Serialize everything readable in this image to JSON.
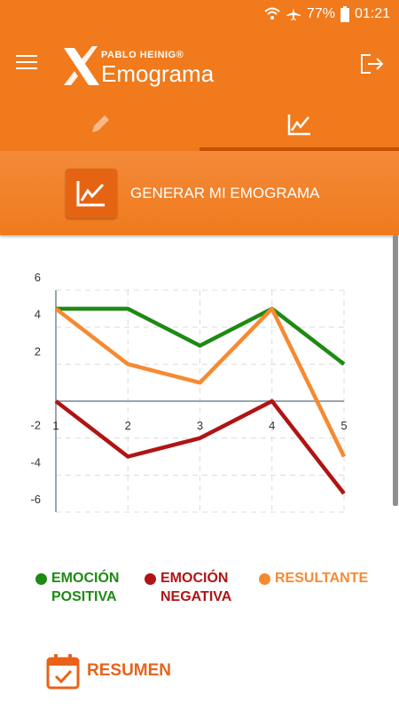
{
  "status": {
    "battery": "77%",
    "time": "01:21"
  },
  "brand": {
    "small": "PABLO HEINIG®",
    "main": "Emograma"
  },
  "tabs": [
    {
      "icon": "pencil-icon",
      "active": false
    },
    {
      "icon": "chart-icon",
      "active": true
    }
  ],
  "action": {
    "label": "GENERAR MI EMOGRAMA",
    "icon": "chart-icon"
  },
  "colors": {
    "primary": "#f07a1c",
    "positive": "#1e8a13",
    "negative": "#b01415",
    "resultant": "#f68a32"
  },
  "chart_data": {
    "type": "line",
    "x": [
      1,
      2,
      3,
      4,
      5
    ],
    "series": [
      {
        "name": "EMOCIÓN POSITIVA",
        "values": [
          5,
          5,
          3,
          5,
          2
        ]
      },
      {
        "name": "EMOCIÓN NEGATIVA",
        "values": [
          0,
          -3,
          -2,
          0,
          -5
        ]
      },
      {
        "name": "RESULTANTE",
        "values": [
          5,
          2,
          1,
          5,
          -3
        ]
      }
    ],
    "xticks": [
      "1",
      "2",
      "3",
      "4",
      "5"
    ],
    "yticks": [
      "6",
      "4",
      "2",
      "-2",
      "-4",
      "-6"
    ],
    "xlim": [
      1,
      5
    ],
    "ylim": [
      -6,
      6
    ],
    "grid": true,
    "legend": "bottom"
  },
  "legend_labels": [
    {
      "line1": "EMOCIÓN",
      "line2": "POSITIVA"
    },
    {
      "line1": "EMOCIÓN",
      "line2": "NEGATIVA"
    },
    {
      "line1": "RESULTANTE",
      "line2": ""
    }
  ],
  "footer": {
    "label": "RESUMEN"
  }
}
